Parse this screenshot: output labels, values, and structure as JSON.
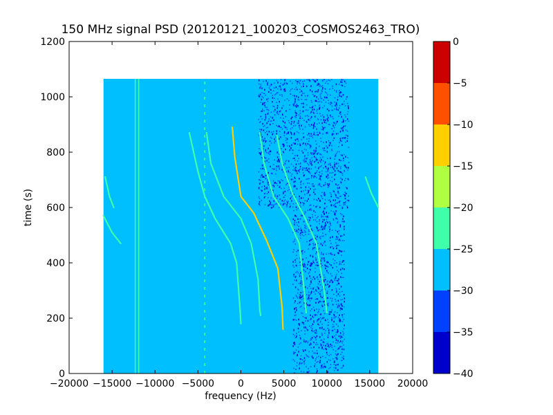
{
  "chart_data": {
    "type": "heatmap",
    "title": "150 MHz signal PSD (20120121_100203_COSMOS2463_TRO)",
    "xlabel": "frequency (Hz)",
    "ylabel": "time (s)",
    "xlim": [
      -20000,
      20000
    ],
    "ylim": [
      0,
      1200
    ],
    "x_ticks": [
      -20000,
      -15000,
      -10000,
      -5000,
      0,
      5000,
      10000,
      15000,
      20000
    ],
    "y_ticks": [
      0,
      200,
      400,
      600,
      800,
      1000,
      1200
    ],
    "data_extent": {
      "x": [
        -16000,
        16000
      ],
      "y": [
        0,
        1065
      ]
    },
    "background_level": "-30 to -25",
    "noise_regions": [
      {
        "x": [
          2000,
          12500
        ],
        "y": [
          600,
          1065
        ],
        "level": "-35 to -30"
      },
      {
        "x": [
          6000,
          12000
        ],
        "y": [
          0,
          600
        ],
        "level": "-35 to -30"
      }
    ],
    "vertical_lines": [
      {
        "x": -12300,
        "y": [
          0,
          1065
        ],
        "level": "-25 to -20"
      },
      {
        "x": -11900,
        "y": [
          0,
          1065
        ],
        "level": "-25 to -20"
      },
      {
        "x": -4200,
        "y": [
          0,
          1065
        ],
        "level": "-25 to -20",
        "dashed": true
      }
    ],
    "traces": [
      {
        "name": "",
        "level": "-15 to -10",
        "points": [
          [
            -1000,
            890
          ],
          [
            -700,
            780
          ],
          [
            0,
            640
          ],
          [
            1500,
            580
          ],
          [
            3000,
            480
          ],
          [
            4300,
            380
          ],
          [
            4800,
            240
          ],
          [
            4900,
            160
          ]
        ]
      },
      {
        "name": "",
        "level": "-25 to -20",
        "points": [
          [
            -6000,
            870
          ],
          [
            -5000,
            730
          ],
          [
            -4200,
            640
          ],
          [
            -3000,
            560
          ],
          [
            -1200,
            470
          ],
          [
            -500,
            400
          ],
          [
            -100,
            230
          ],
          [
            0,
            180
          ]
        ]
      },
      {
        "name": "",
        "level": "-25 to -20",
        "points": [
          [
            -4000,
            870
          ],
          [
            -3500,
            760
          ],
          [
            -2000,
            640
          ],
          [
            0,
            560
          ],
          [
            1200,
            470
          ],
          [
            2000,
            340
          ],
          [
            2200,
            230
          ],
          [
            2300,
            210
          ]
        ]
      },
      {
        "name": "",
        "level": "-25 to -20",
        "points": [
          [
            2200,
            870
          ],
          [
            2700,
            760
          ],
          [
            3800,
            640
          ],
          [
            5500,
            560
          ],
          [
            6800,
            470
          ],
          [
            7300,
            320
          ],
          [
            7600,
            220
          ]
        ]
      },
      {
        "name": "",
        "level": "-25 to -20",
        "points": [
          [
            4200,
            860
          ],
          [
            4800,
            760
          ],
          [
            6000,
            650
          ],
          [
            7500,
            560
          ],
          [
            8800,
            470
          ],
          [
            9700,
            300
          ],
          [
            10000,
            220
          ]
        ]
      },
      {
        "name": "",
        "level": "-25 to -20",
        "points": [
          [
            -15800,
            710
          ],
          [
            -15300,
            640
          ],
          [
            -14800,
            600
          ]
        ]
      },
      {
        "name": "",
        "level": "-25 to -20",
        "points": [
          [
            -16000,
            570
          ],
          [
            -15000,
            510
          ],
          [
            -14000,
            470
          ]
        ]
      },
      {
        "name": "",
        "level": "-25 to -20",
        "points": [
          [
            14500,
            710
          ],
          [
            15200,
            650
          ],
          [
            16000,
            600
          ]
        ]
      }
    ],
    "colorbar": {
      "levels": [
        -40,
        -35,
        -30,
        -25,
        -20,
        -15,
        -10,
        -5,
        0
      ],
      "colors": [
        "#0000cd",
        "#0040ff",
        "#00bfff",
        "#40ffaa",
        "#b0ff40",
        "#ffd000",
        "#ff5000",
        "#cc0000"
      ]
    },
    "grid": false,
    "legend": "none"
  }
}
